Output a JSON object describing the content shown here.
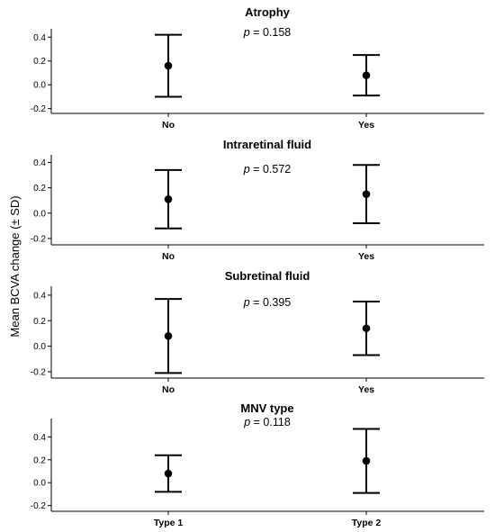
{
  "figure": {
    "ylabel": "Mean BCVA change (± SD)"
  },
  "chart_data": [
    {
      "type": "scatter",
      "title": "Atrophy",
      "pvalue": {
        "prefix": "p",
        "text": " = 0.158"
      },
      "categories": [
        "No",
        "Yes"
      ],
      "series": [
        {
          "mean": [
            0.16,
            0.08
          ],
          "lower": [
            -0.1,
            -0.09
          ],
          "upper": [
            0.42,
            0.25
          ]
        }
      ],
      "yticks": [
        "0.4",
        "0.2",
        "0.0",
        "-0.2"
      ],
      "ylim": [
        -0.24,
        0.47
      ],
      "error_bars": "mean ± SD"
    },
    {
      "type": "scatter",
      "title": "Intraretinal fluid",
      "pvalue": {
        "prefix": "p",
        "text": " = 0.572"
      },
      "categories": [
        "No",
        "Yes"
      ],
      "series": [
        {
          "mean": [
            0.11,
            0.15
          ],
          "lower": [
            -0.12,
            -0.08
          ],
          "upper": [
            0.34,
            0.38
          ]
        }
      ],
      "yticks": [
        "0.4",
        "0.2",
        "0.0",
        "-0.2"
      ],
      "ylim": [
        -0.25,
        0.46
      ],
      "error_bars": "mean ± SD"
    },
    {
      "type": "scatter",
      "title": "Subretinal fluid",
      "pvalue": {
        "prefix": "p",
        "text": " = 0.395"
      },
      "categories": [
        "No",
        "Yes"
      ],
      "series": [
        {
          "mean": [
            0.08,
            0.14
          ],
          "lower": [
            -0.21,
            -0.07
          ],
          "upper": [
            0.37,
            0.35
          ]
        }
      ],
      "yticks": [
        "0.4",
        "0.2",
        "0.0",
        "-0.2"
      ],
      "ylim": [
        -0.25,
        0.47
      ],
      "error_bars": "mean ± SD"
    },
    {
      "type": "scatter",
      "title": "MNV type",
      "pvalue": {
        "prefix": "p",
        "text": " = 0.118"
      },
      "categories": [
        "Type 1",
        "Type 2"
      ],
      "series": [
        {
          "mean": [
            0.08,
            0.19
          ],
          "lower": [
            -0.08,
            -0.09
          ],
          "upper": [
            0.24,
            0.47
          ]
        }
      ],
      "yticks": [
        "0.4",
        "0.2",
        "0.0",
        "-0.2"
      ],
      "ylim": [
        -0.25,
        0.56
      ],
      "error_bars": "mean ± SD"
    }
  ]
}
